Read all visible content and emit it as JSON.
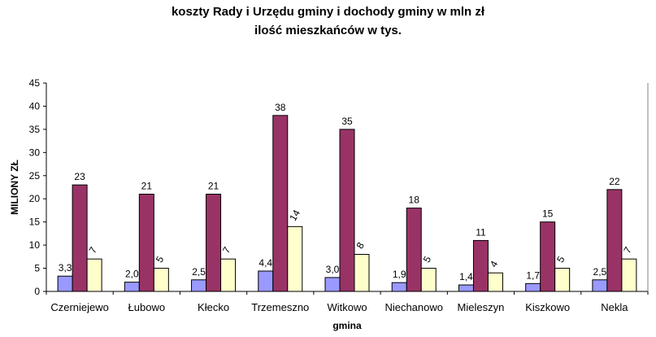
{
  "chart_data": {
    "type": "bar",
    "title_line1": "koszty Rady i Urzędu gminy i dochody gminy w mln zł",
    "title_line2": "ilość mieszkańców w tys.",
    "xlabel": "gmina",
    "ylabel": "MILIONY ZŁ",
    "ylim": [
      0,
      45
    ],
    "yticks": [
      "0",
      "5",
      "10",
      "15",
      "20",
      "25",
      "30",
      "35",
      "40",
      "45"
    ],
    "grid": false,
    "legend": "none",
    "categories": [
      "Czerniejewo",
      "Łubowo",
      "Kłecko",
      "Trzemeszno",
      "Witkowo",
      "Niechanowo",
      "Mieleszyn",
      "Kiszkowo",
      "Nekla"
    ],
    "series": [
      {
        "color": "#9999ff",
        "values": [
          3.3,
          2.0,
          2.5,
          4.4,
          3.0,
          1.9,
          1.4,
          1.7,
          2.5
        ],
        "labels": [
          "3,3",
          "2,0",
          "2,5",
          "4,4",
          "3,0",
          "1,9",
          "1,4",
          "1,7",
          "2,5"
        ]
      },
      {
        "color": "#993366",
        "values": [
          23,
          21,
          21,
          38,
          35,
          18,
          11,
          15,
          22
        ],
        "labels": [
          "23",
          "21",
          "21",
          "38",
          "35",
          "18",
          "11",
          "15",
          "22"
        ]
      },
      {
        "color": "#ffffcc",
        "values": [
          7,
          5,
          7,
          14,
          8,
          5,
          4,
          5,
          7
        ],
        "labels": [
          "7",
          "5",
          "7",
          "14",
          "8",
          "5",
          "4",
          "5",
          "7"
        ]
      }
    ]
  }
}
